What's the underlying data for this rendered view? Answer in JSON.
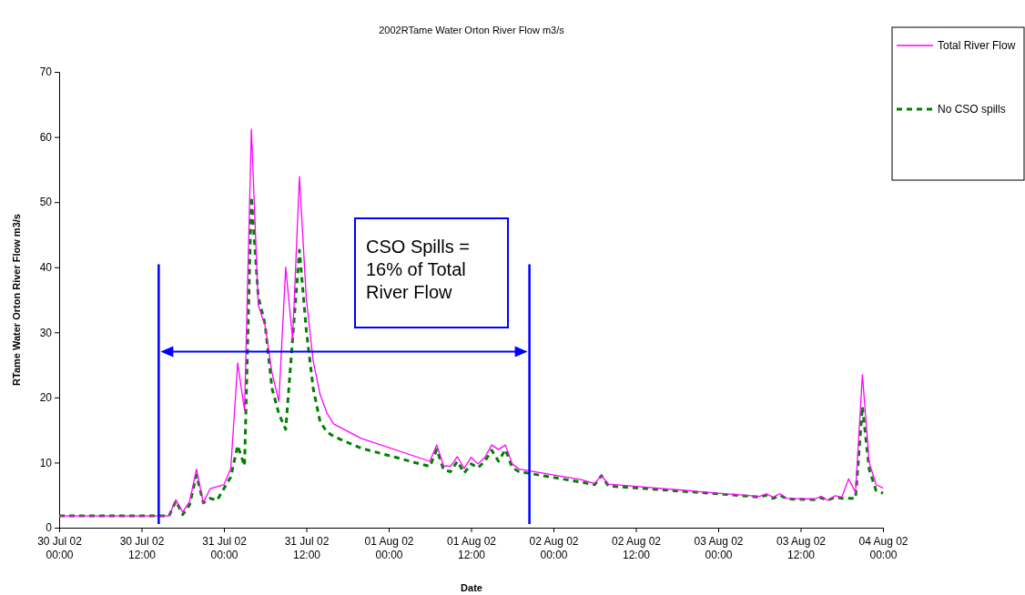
{
  "chart_data": {
    "type": "line",
    "title": "2002RTame Water Orton River Flow m3/s",
    "xlabel": "Date",
    "ylabel": "RTame Water Orton River Flow m3/s",
    "x": [
      "2002-07-30T00:00",
      "2002-07-30T16:00",
      "2002-07-30T17:00",
      "2002-07-30T18:00",
      "2002-07-30T19:00",
      "2002-07-30T20:00",
      "2002-07-30T21:00",
      "2002-07-30T22:00",
      "2002-07-30T23:00",
      "2002-07-31T00:00",
      "2002-07-31T01:00",
      "2002-07-31T02:00",
      "2002-07-31T03:00",
      "2002-07-31T04:00",
      "2002-07-31T05:00",
      "2002-07-31T06:00",
      "2002-07-31T07:00",
      "2002-07-31T08:00",
      "2002-07-31T09:00",
      "2002-07-31T10:00",
      "2002-07-31T11:00",
      "2002-07-31T12:00",
      "2002-07-31T13:00",
      "2002-07-31T14:00",
      "2002-07-31T15:00",
      "2002-07-31T16:00",
      "2002-07-31T20:00",
      "2002-08-01T06:00",
      "2002-08-01T07:00",
      "2002-08-01T08:00",
      "2002-08-01T09:00",
      "2002-08-01T10:00",
      "2002-08-01T11:00",
      "2002-08-01T12:00",
      "2002-08-01T13:00",
      "2002-08-01T14:00",
      "2002-08-01T15:00",
      "2002-08-01T16:00",
      "2002-08-01T17:00",
      "2002-08-01T18:00",
      "2002-08-01T19:00",
      "2002-08-02T04:00",
      "2002-08-02T06:00",
      "2002-08-02T07:00",
      "2002-08-02T08:00",
      "2002-08-03T00:00",
      "2002-08-03T06:00",
      "2002-08-03T07:00",
      "2002-08-03T08:00",
      "2002-08-03T09:00",
      "2002-08-03T10:00",
      "2002-08-03T14:00",
      "2002-08-03T15:00",
      "2002-08-03T16:00",
      "2002-08-03T17:00",
      "2002-08-03T18:00",
      "2002-08-03T19:00",
      "2002-08-03T20:00",
      "2002-08-03T21:00",
      "2002-08-03T22:00",
      "2002-08-03T23:00",
      "2002-08-04T00:00"
    ],
    "series": [
      {
        "name": "Total River Flow",
        "color": "#ff00ff",
        "line_style": "solid",
        "values": [
          1.8,
          1.8,
          4.3,
          2.4,
          4.0,
          9.0,
          3.8,
          6.0,
          6.3,
          6.6,
          9.1,
          25.3,
          18.0,
          61.2,
          34.2,
          31.0,
          23.8,
          19.4,
          40.0,
          28.9,
          53.9,
          35.2,
          25.6,
          20.5,
          17.6,
          15.9,
          13.7,
          10.2,
          12.7,
          9.5,
          9.4,
          10.9,
          9.1,
          10.8,
          9.8,
          10.8,
          12.7,
          12.0,
          12.7,
          9.8,
          9.0,
          7.4,
          6.8,
          8.0,
          6.7,
          5.3,
          4.8,
          5.2,
          4.7,
          5.2,
          4.5,
          4.4,
          4.8,
          4.2,
          4.9,
          4.7,
          7.5,
          5.4,
          23.5,
          10.0,
          6.6,
          6.1
        ]
      },
      {
        "name": "No CSO spills",
        "color": "#008000",
        "line_style": "dashed",
        "values": [
          1.8,
          1.8,
          4.1,
          2.0,
          3.5,
          8.1,
          3.8,
          4.5,
          4.2,
          6.0,
          7.8,
          12.6,
          9.5,
          50.8,
          35.5,
          31.2,
          21.4,
          17.5,
          15.1,
          28.9,
          42.6,
          30.3,
          21.4,
          16.3,
          14.7,
          14.0,
          12.2,
          9.4,
          12.0,
          8.9,
          8.6,
          10.2,
          8.4,
          9.8,
          9.2,
          10.2,
          11.9,
          10.2,
          12.0,
          9.2,
          8.6,
          7.0,
          6.6,
          8.0,
          6.4,
          5.2,
          4.7,
          5.0,
          4.5,
          5.0,
          4.4,
          4.3,
          4.6,
          4.2,
          4.7,
          4.5,
          4.5,
          4.5,
          18.6,
          8.9,
          5.7,
          5.3
        ]
      }
    ],
    "xlim": [
      "2002-07-30T00:00",
      "2002-08-04T00:00"
    ],
    "xticks": [
      {
        "value": "2002-07-30T00:00",
        "label": "30 Jul 02 00:00"
      },
      {
        "value": "2002-07-30T12:00",
        "label": "30 Jul 02 12:00"
      },
      {
        "value": "2002-07-31T00:00",
        "label": "31 Jul 02 00:00"
      },
      {
        "value": "2002-07-31T12:00",
        "label": "31 Jul 02 12:00"
      },
      {
        "value": "2002-08-01T00:00",
        "label": "01 Aug 02 00:00"
      },
      {
        "value": "2002-08-01T12:00",
        "label": "01 Aug 02 12:00"
      },
      {
        "value": "2002-08-02T00:00",
        "label": "02 Aug 02 00:00"
      },
      {
        "value": "2002-08-02T12:00",
        "label": "02 Aug 02 12:00"
      },
      {
        "value": "2002-08-03T00:00",
        "label": "03 Aug 02 00:00"
      },
      {
        "value": "2002-08-03T12:00",
        "label": "03 Aug 02 12:00"
      },
      {
        "value": "2002-08-04T00:00",
        "label": "04 Aug 02 00:00"
      }
    ],
    "ylim": [
      0,
      70
    ],
    "yticks": [
      0,
      10,
      20,
      30,
      40,
      50,
      60,
      70
    ],
    "ref_lines": [
      {
        "axis": "x",
        "value": "2002-07-30T14:30",
        "label": null,
        "color": "#0000ff"
      },
      {
        "axis": "x",
        "value": "2002-08-01T20:30",
        "label": null,
        "color": "#0000ff"
      }
    ],
    "annotations": [
      "CSO Spills = 16% of Total River Flow"
    ],
    "legend": "top right",
    "grid": false,
    "marker": "none"
  }
}
